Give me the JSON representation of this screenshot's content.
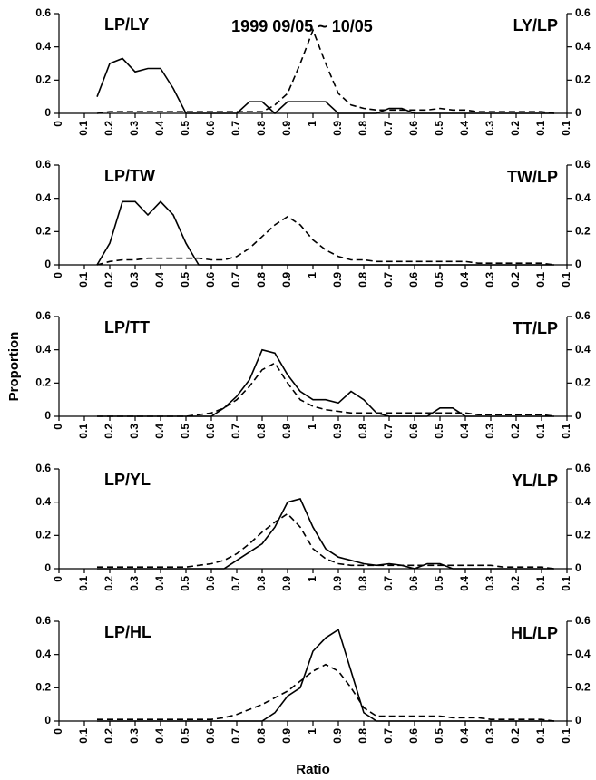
{
  "chart_data": [
    {
      "type": "line",
      "title": "1999 09/05 ~ 10/05",
      "left_label": "LP/LY",
      "right_label": "LY/LP",
      "x": [
        0.15,
        0.2,
        0.25,
        0.3,
        0.35,
        0.4,
        0.45,
        0.5,
        0.55,
        0.6,
        0.65,
        0.7,
        0.75,
        0.8,
        0.85,
        0.9,
        0.95,
        1.0,
        1.05,
        1.1,
        1.15,
        1.2,
        1.25,
        1.3,
        1.35,
        1.4,
        1.45,
        1.5,
        1.55,
        1.6,
        1.65,
        1.7,
        1.75,
        1.8,
        1.85,
        1.9,
        1.95
      ],
      "xlim": [
        0,
        2
      ],
      "xticks": [
        0,
        0.1,
        0.2,
        0.3,
        0.4,
        0.5,
        0.6,
        0.7,
        0.8,
        0.9,
        1,
        {
          "value": 1.1,
          "label": "0.9"
        },
        {
          "value": 1.2,
          "label": "0.8"
        },
        {
          "value": 1.3,
          "label": "0.7"
        },
        {
          "value": 1.4,
          "label": "0.6"
        },
        {
          "value": 1.5,
          "label": "0.5"
        },
        {
          "value": 1.6,
          "label": "0.4"
        },
        {
          "value": 1.7,
          "label": "0.3"
        },
        {
          "value": 1.8,
          "label": "0.2"
        },
        {
          "value": 1.9,
          "label": "0.1"
        },
        {
          "value": 2,
          "label": "0.1"
        }
      ],
      "ylim": [
        0,
        0.6
      ],
      "yticks": [
        0,
        0.2,
        0.4,
        0.6
      ],
      "series": [
        {
          "color": "#000000",
          "dash": "solid",
          "values": [
            0.1,
            0.3,
            0.33,
            0.25,
            0.27,
            0.27,
            0.15,
            0,
            0,
            0,
            0,
            0,
            0.07,
            0.07,
            0,
            0.07,
            0.07,
            0.07,
            0.07,
            0,
            0,
            0,
            0,
            0.03,
            0.03,
            0,
            0,
            0,
            0,
            0,
            0,
            0,
            0,
            0,
            0,
            0,
            0
          ]
        },
        {
          "color": "#000000",
          "dash": "dashed",
          "values": [
            0,
            0.01,
            0.01,
            0.01,
            0.01,
            0.01,
            0.01,
            0.01,
            0.01,
            0.01,
            0.01,
            0.01,
            0.01,
            0.01,
            0.05,
            0.12,
            0.3,
            0.5,
            0.3,
            0.12,
            0.05,
            0.03,
            0.02,
            0.02,
            0.02,
            0.02,
            0.02,
            0.03,
            0.02,
            0.02,
            0.01,
            0.01,
            0.01,
            0.01,
            0.01,
            0.01,
            0
          ]
        }
      ]
    },
    {
      "type": "line",
      "left_label": "LP/TW",
      "right_label": "TW/LP",
      "x": [
        0.15,
        0.2,
        0.25,
        0.3,
        0.35,
        0.4,
        0.45,
        0.5,
        0.55,
        0.6,
        0.65,
        0.7,
        0.75,
        0.8,
        0.85,
        0.9,
        0.95,
        1.0,
        1.05,
        1.1,
        1.15,
        1.2,
        1.25,
        1.3,
        1.35,
        1.4,
        1.45,
        1.5,
        1.55,
        1.6,
        1.65,
        1.7,
        1.75,
        1.8,
        1.85,
        1.9,
        1.95
      ],
      "xlim": [
        0,
        2
      ],
      "xticks": [
        0,
        0.1,
        0.2,
        0.3,
        0.4,
        0.5,
        0.6,
        0.7,
        0.8,
        0.9,
        1,
        {
          "value": 1.1,
          "label": "0.9"
        },
        {
          "value": 1.2,
          "label": "0.8"
        },
        {
          "value": 1.3,
          "label": "0.7"
        },
        {
          "value": 1.4,
          "label": "0.6"
        },
        {
          "value": 1.5,
          "label": "0.5"
        },
        {
          "value": 1.6,
          "label": "0.4"
        },
        {
          "value": 1.7,
          "label": "0.3"
        },
        {
          "value": 1.8,
          "label": "0.2"
        },
        {
          "value": 1.9,
          "label": "0.1"
        },
        {
          "value": 2,
          "label": "0.1"
        }
      ],
      "ylim": [
        0,
        0.6
      ],
      "yticks": [
        0,
        0.2,
        0.4,
        0.6
      ],
      "series": [
        {
          "color": "#000000",
          "dash": "solid",
          "values": [
            0,
            0.13,
            0.38,
            0.38,
            0.3,
            0.38,
            0.3,
            0.13,
            0,
            0,
            0,
            0,
            0,
            0,
            0,
            0,
            0,
            0,
            0,
            0,
            0,
            0,
            0,
            0,
            0,
            0,
            0,
            0,
            0,
            0,
            0,
            0,
            0,
            0,
            0,
            0,
            0
          ]
        },
        {
          "color": "#000000",
          "dash": "dashed",
          "values": [
            0,
            0.02,
            0.03,
            0.03,
            0.04,
            0.04,
            0.04,
            0.04,
            0.04,
            0.03,
            0.03,
            0.05,
            0.1,
            0.17,
            0.24,
            0.29,
            0.24,
            0.15,
            0.09,
            0.05,
            0.03,
            0.03,
            0.02,
            0.02,
            0.02,
            0.02,
            0.02,
            0.02,
            0.02,
            0.02,
            0.01,
            0.01,
            0.01,
            0.01,
            0.01,
            0.01,
            0
          ]
        }
      ]
    },
    {
      "type": "line",
      "left_label": "LP/TT",
      "right_label": "TT/LP",
      "ylabel": "Proportion",
      "x": [
        0.15,
        0.2,
        0.25,
        0.3,
        0.35,
        0.4,
        0.45,
        0.5,
        0.55,
        0.6,
        0.65,
        0.7,
        0.75,
        0.8,
        0.85,
        0.9,
        0.95,
        1.0,
        1.05,
        1.1,
        1.15,
        1.2,
        1.25,
        1.3,
        1.35,
        1.4,
        1.45,
        1.5,
        1.55,
        1.6,
        1.65,
        1.7,
        1.75,
        1.8,
        1.85,
        1.9,
        1.95
      ],
      "xlim": [
        0,
        2
      ],
      "xticks": [
        0,
        0.1,
        0.2,
        0.3,
        0.4,
        0.5,
        0.6,
        0.7,
        0.8,
        0.9,
        1,
        {
          "value": 1.1,
          "label": "0.9"
        },
        {
          "value": 1.2,
          "label": "0.8"
        },
        {
          "value": 1.3,
          "label": "0.7"
        },
        {
          "value": 1.4,
          "label": "0.6"
        },
        {
          "value": 1.5,
          "label": "0.5"
        },
        {
          "value": 1.6,
          "label": "0.4"
        },
        {
          "value": 1.7,
          "label": "0.3"
        },
        {
          "value": 1.8,
          "label": "0.2"
        },
        {
          "value": 1.9,
          "label": "0.1"
        },
        {
          "value": 2,
          "label": "0.1"
        }
      ],
      "ylim": [
        0,
        0.6
      ],
      "yticks": [
        0,
        0.2,
        0.4,
        0.6
      ],
      "series": [
        {
          "color": "#000000",
          "dash": "solid",
          "values": [
            0,
            0,
            0,
            0,
            0,
            0,
            0,
            0,
            0,
            0,
            0.05,
            0.12,
            0.22,
            0.4,
            0.38,
            0.25,
            0.15,
            0.1,
            0.1,
            0.08,
            0.15,
            0.1,
            0.02,
            0,
            0,
            0,
            0,
            0.05,
            0.05,
            0,
            0,
            0,
            0,
            0,
            0,
            0,
            0
          ]
        },
        {
          "color": "#000000",
          "dash": "dashed",
          "values": [
            0,
            0,
            0,
            0,
            0,
            0,
            0,
            0,
            0.01,
            0.02,
            0.05,
            0.1,
            0.18,
            0.28,
            0.32,
            0.2,
            0.1,
            0.06,
            0.04,
            0.03,
            0.02,
            0.02,
            0.02,
            0.02,
            0.02,
            0.02,
            0.02,
            0.02,
            0.02,
            0.02,
            0.01,
            0.01,
            0.01,
            0.01,
            0.01,
            0.01,
            0
          ]
        }
      ]
    },
    {
      "type": "line",
      "left_label": "LP/YL",
      "right_label": "YL/LP",
      "x": [
        0.15,
        0.2,
        0.25,
        0.3,
        0.35,
        0.4,
        0.45,
        0.5,
        0.55,
        0.6,
        0.65,
        0.7,
        0.75,
        0.8,
        0.85,
        0.9,
        0.95,
        1.0,
        1.05,
        1.1,
        1.15,
        1.2,
        1.25,
        1.3,
        1.35,
        1.4,
        1.45,
        1.5,
        1.55,
        1.6,
        1.65,
        1.7,
        1.75,
        1.8,
        1.85,
        1.9,
        1.95
      ],
      "xlim": [
        0,
        2
      ],
      "xticks": [
        0,
        0.1,
        0.2,
        0.3,
        0.4,
        0.5,
        0.6,
        0.7,
        0.8,
        0.9,
        1,
        {
          "value": 1.1,
          "label": "0.9"
        },
        {
          "value": 1.2,
          "label": "0.8"
        },
        {
          "value": 1.3,
          "label": "0.7"
        },
        {
          "value": 1.4,
          "label": "0.6"
        },
        {
          "value": 1.5,
          "label": "0.5"
        },
        {
          "value": 1.6,
          "label": "0.4"
        },
        {
          "value": 1.7,
          "label": "0.3"
        },
        {
          "value": 1.8,
          "label": "0.2"
        },
        {
          "value": 1.9,
          "label": "0.1"
        },
        {
          "value": 2,
          "label": "0.1"
        }
      ],
      "ylim": [
        0,
        0.6
      ],
      "yticks": [
        0,
        0.2,
        0.4,
        0.6
      ],
      "series": [
        {
          "color": "#000000",
          "dash": "solid",
          "values": [
            0,
            0,
            0,
            0,
            0,
            0,
            0,
            0,
            0,
            0,
            0,
            0.05,
            0.1,
            0.15,
            0.25,
            0.4,
            0.42,
            0.25,
            0.12,
            0.07,
            0.05,
            0.03,
            0.02,
            0.03,
            0.02,
            0,
            0.03,
            0.03,
            0,
            0,
            0,
            0,
            0,
            0,
            0,
            0,
            0
          ]
        },
        {
          "color": "#000000",
          "dash": "dashed",
          "values": [
            0.01,
            0.01,
            0.01,
            0.01,
            0.01,
            0.01,
            0.01,
            0.01,
            0.02,
            0.03,
            0.05,
            0.09,
            0.15,
            0.22,
            0.28,
            0.33,
            0.25,
            0.12,
            0.06,
            0.03,
            0.02,
            0.02,
            0.02,
            0.02,
            0.02,
            0.02,
            0.02,
            0.02,
            0.02,
            0.02,
            0.02,
            0.02,
            0.01,
            0.01,
            0.01,
            0.01,
            0
          ]
        }
      ]
    },
    {
      "type": "line",
      "left_label": "LP/HL",
      "right_label": "HL/LP",
      "xlabel": "Ratio",
      "x": [
        0.15,
        0.2,
        0.25,
        0.3,
        0.35,
        0.4,
        0.45,
        0.5,
        0.55,
        0.6,
        0.65,
        0.7,
        0.75,
        0.8,
        0.85,
        0.9,
        0.95,
        1.0,
        1.05,
        1.1,
        1.15,
        1.2,
        1.25,
        1.3,
        1.35,
        1.4,
        1.45,
        1.5,
        1.55,
        1.6,
        1.65,
        1.7,
        1.75,
        1.8,
        1.85,
        1.9,
        1.95
      ],
      "xlim": [
        0,
        2
      ],
      "xticks": [
        0,
        0.1,
        0.2,
        0.3,
        0.4,
        0.5,
        0.6,
        0.7,
        0.8,
        0.9,
        1,
        {
          "value": 1.1,
          "label": "0.9"
        },
        {
          "value": 1.2,
          "label": "0.8"
        },
        {
          "value": 1.3,
          "label": "0.7"
        },
        {
          "value": 1.4,
          "label": "0.6"
        },
        {
          "value": 1.5,
          "label": "0.5"
        },
        {
          "value": 1.6,
          "label": "0.4"
        },
        {
          "value": 1.7,
          "label": "0.3"
        },
        {
          "value": 1.8,
          "label": "0.2"
        },
        {
          "value": 1.9,
          "label": "0.1"
        },
        {
          "value": 2,
          "label": "0.1"
        }
      ],
      "ylim": [
        0,
        0.6
      ],
      "yticks": [
        0,
        0.2,
        0.4,
        0.6
      ],
      "series": [
        {
          "color": "#000000",
          "dash": "solid",
          "values": [
            0,
            0,
            0,
            0,
            0,
            0,
            0,
            0,
            0,
            0,
            0,
            0,
            0,
            0,
            0.05,
            0.15,
            0.2,
            0.42,
            0.5,
            0.55,
            0.3,
            0.05,
            0,
            0,
            0,
            0,
            0,
            0,
            0,
            0,
            0,
            0,
            0,
            0,
            0,
            0,
            0
          ]
        },
        {
          "color": "#000000",
          "dash": "dashed",
          "values": [
            0.01,
            0.01,
            0.01,
            0.01,
            0.01,
            0.01,
            0.01,
            0.01,
            0.01,
            0.01,
            0.02,
            0.04,
            0.07,
            0.1,
            0.14,
            0.18,
            0.24,
            0.3,
            0.34,
            0.3,
            0.2,
            0.08,
            0.03,
            0.03,
            0.03,
            0.03,
            0.03,
            0.03,
            0.02,
            0.02,
            0.02,
            0.01,
            0.01,
            0.01,
            0.01,
            0.01,
            0
          ]
        }
      ]
    }
  ]
}
